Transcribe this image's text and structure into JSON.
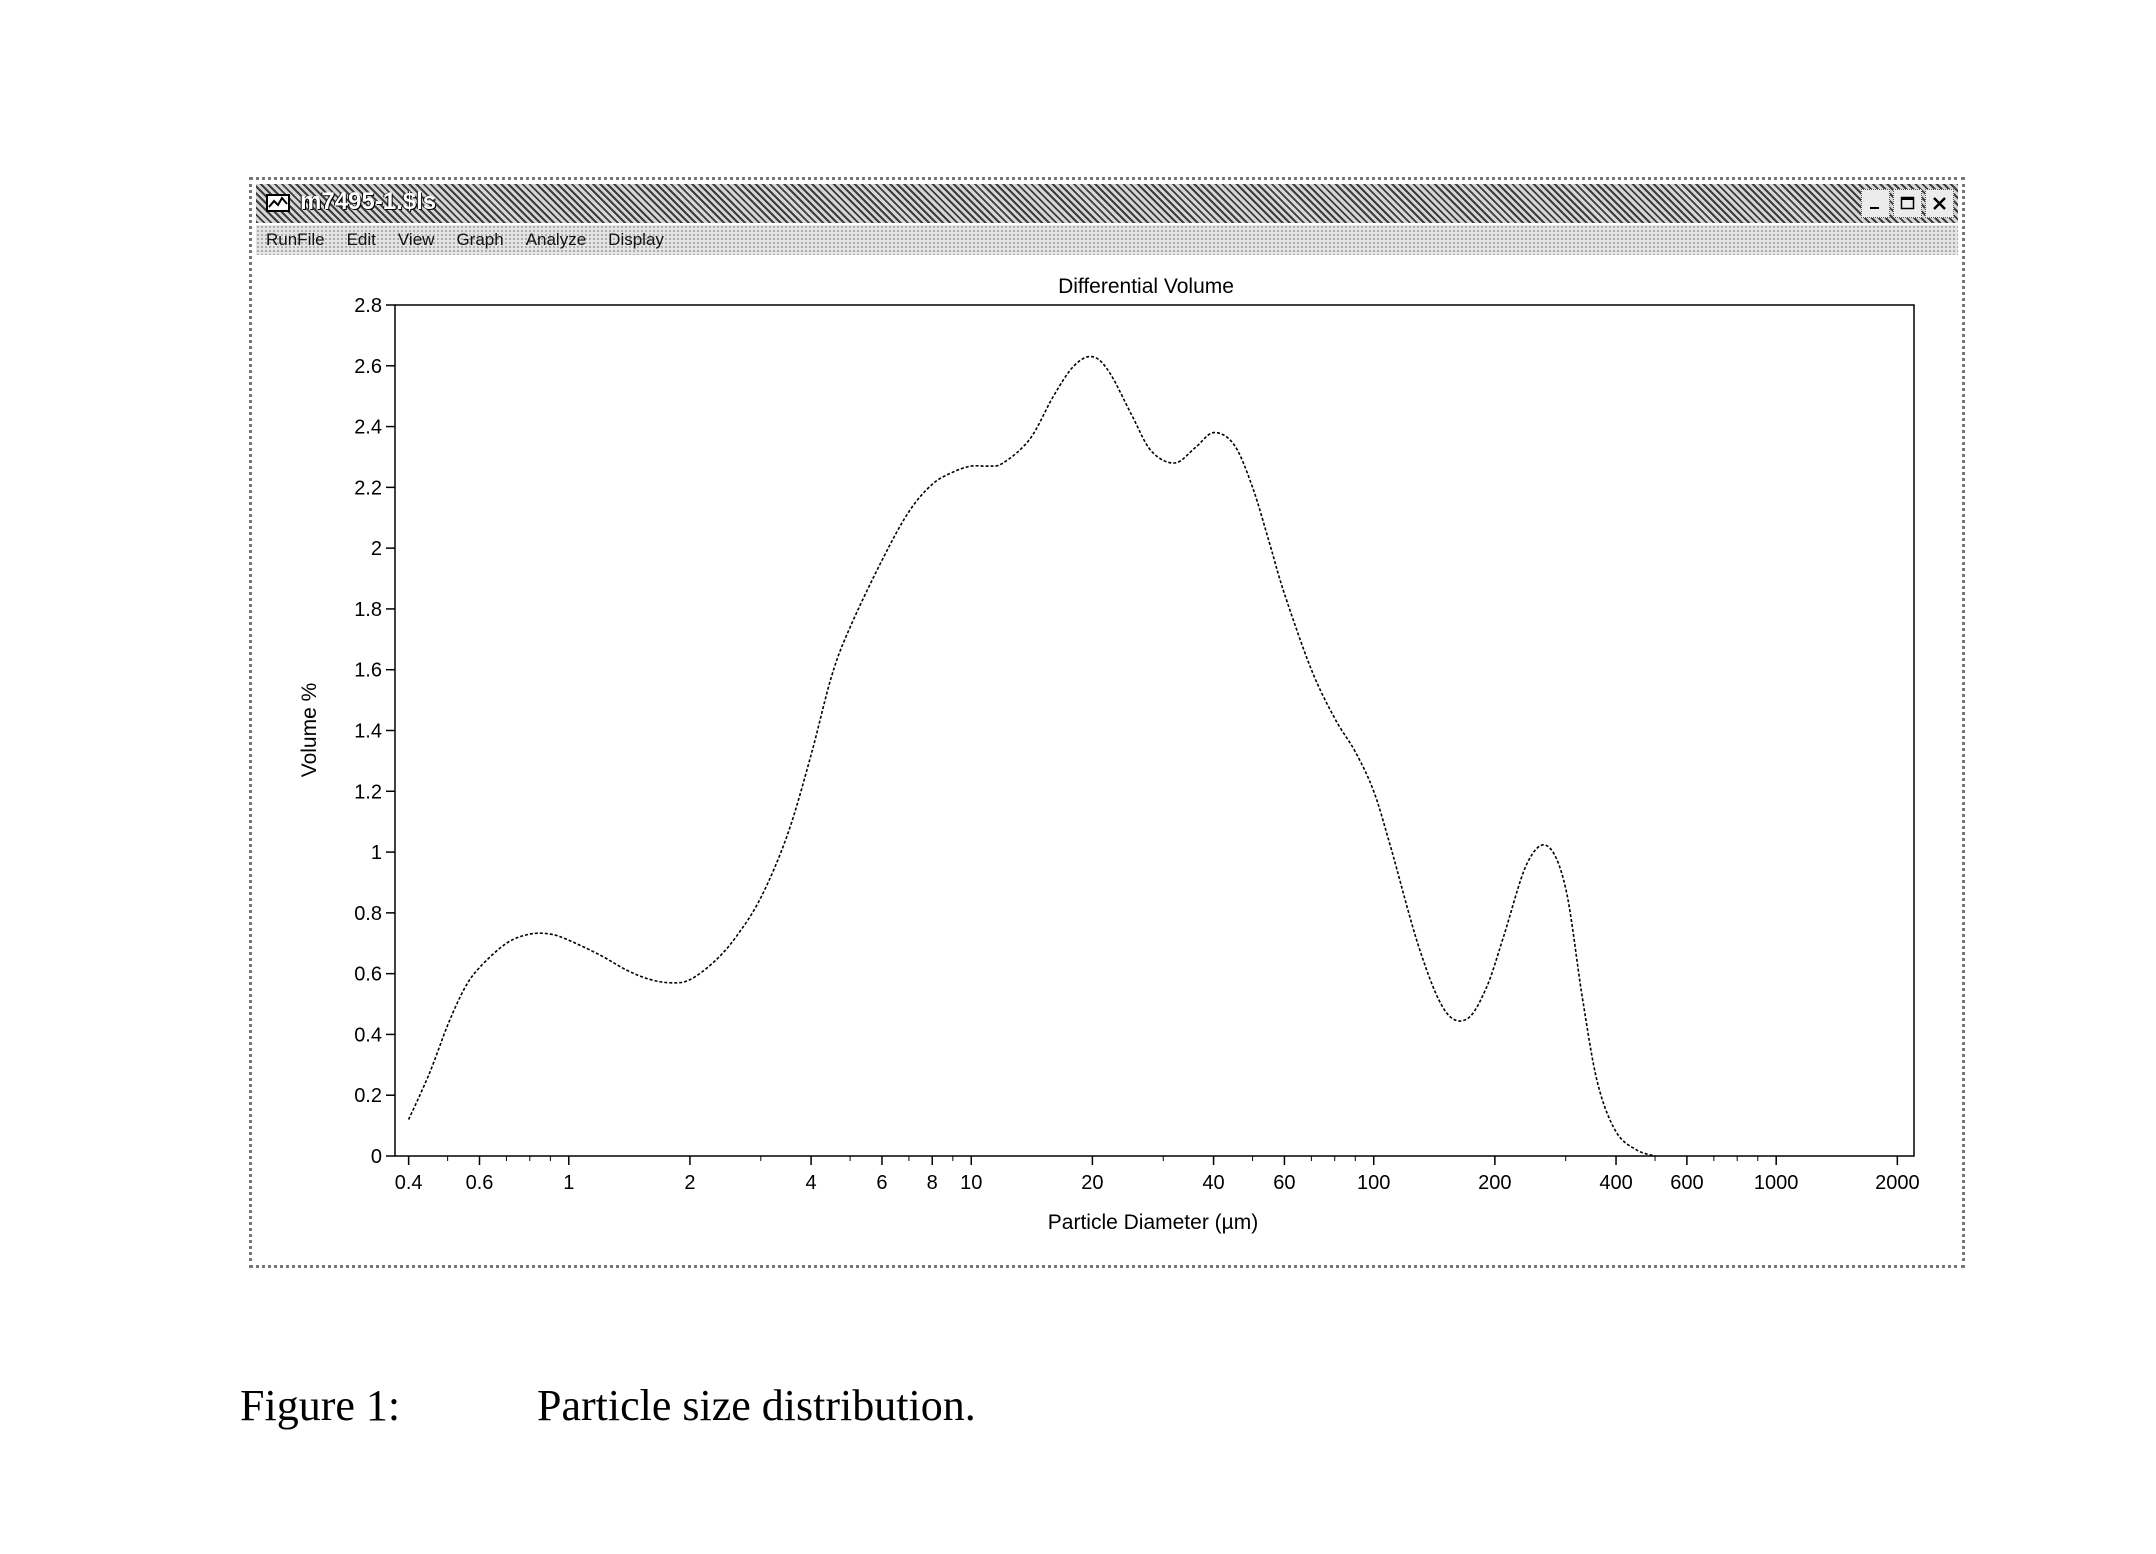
{
  "window": {
    "title": "m7495-1.$ls",
    "menu": [
      "RunFile",
      "Edit",
      "View",
      "Graph",
      "Analyze",
      "Display"
    ],
    "controls": [
      "minimize-icon",
      "maximize-icon",
      "close-icon"
    ]
  },
  "chart_data": {
    "type": "line",
    "title": "Differential Volume",
    "xlabel": "Particle Diameter (µm)",
    "ylabel": "Volume %",
    "xscale": "log",
    "xlim": [
      0.37,
      2200
    ],
    "ylim": [
      0,
      2.8
    ],
    "x_ticks": [
      0.4,
      0.6,
      1,
      2,
      4,
      6,
      8,
      10,
      20,
      40,
      60,
      100,
      200,
      400,
      600,
      1000,
      2000
    ],
    "x_tick_labels": [
      "0.4",
      "0.6",
      "1",
      "2",
      "4",
      "6",
      "8",
      "10",
      "20",
      "40",
      "60",
      "100",
      "200",
      "400",
      "600",
      "1000",
      "2000"
    ],
    "y_ticks": [
      0,
      0.2,
      0.4,
      0.6,
      0.8,
      1,
      1.2,
      1.4,
      1.6,
      1.8,
      2,
      2.2,
      2.4,
      2.6,
      2.8
    ],
    "y_tick_labels": [
      "0",
      "0.2",
      "0.4",
      "0.6",
      "0.8",
      "1",
      "1.2",
      "1.4",
      "1.6",
      "1.8",
      "2",
      "2.2",
      "2.4",
      "2.6",
      "2.8"
    ],
    "grid": false,
    "series": [
      {
        "line_style": "dashed",
        "color": "#000000",
        "x": [
          0.4,
          0.45,
          0.5,
          0.55,
          0.6,
          0.7,
          0.8,
          0.9,
          1.0,
          1.2,
          1.4,
          1.6,
          1.8,
          2.0,
          2.3,
          2.6,
          3.0,
          3.5,
          4.0,
          4.5,
          5.0,
          6.0,
          7.0,
          8.0,
          9.0,
          10.0,
          11.0,
          12.0,
          14.0,
          16.0,
          18.0,
          20.0,
          22.0,
          25.0,
          28.0,
          32.0,
          36.0,
          40.0,
          45.0,
          50.0,
          55.0,
          60.0,
          70.0,
          80.0,
          90.0,
          100.0,
          110.0,
          130.0,
          150.0,
          170.0,
          190.0,
          210.0,
          240.0,
          270.0,
          300.0,
          330.0,
          360.0,
          400.0,
          450.0,
          500.0
        ],
        "y": [
          0.12,
          0.27,
          0.43,
          0.55,
          0.62,
          0.7,
          0.73,
          0.73,
          0.71,
          0.66,
          0.61,
          0.58,
          0.57,
          0.58,
          0.64,
          0.72,
          0.85,
          1.06,
          1.32,
          1.58,
          1.74,
          1.96,
          2.12,
          2.21,
          2.25,
          2.27,
          2.27,
          2.28,
          2.36,
          2.5,
          2.6,
          2.63,
          2.58,
          2.44,
          2.32,
          2.28,
          2.33,
          2.38,
          2.34,
          2.2,
          2.02,
          1.85,
          1.6,
          1.44,
          1.33,
          1.2,
          1.02,
          0.68,
          0.48,
          0.45,
          0.55,
          0.72,
          0.96,
          1.02,
          0.88,
          0.52,
          0.24,
          0.08,
          0.02,
          0.0
        ]
      }
    ]
  },
  "caption": {
    "number": "Figure 1:",
    "text": "Particle size distribution."
  }
}
